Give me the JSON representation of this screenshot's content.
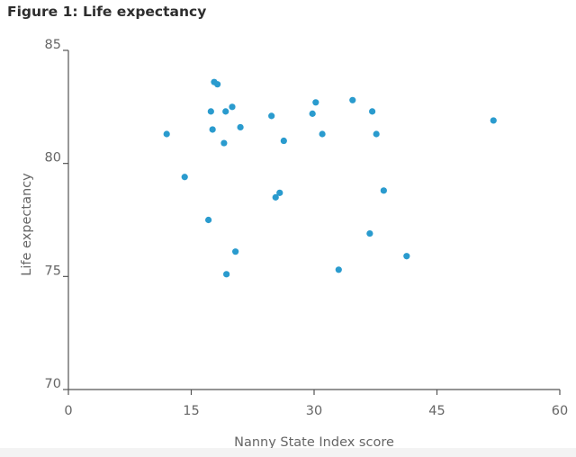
{
  "figure": {
    "title": "Figure 1: Life expectancy"
  },
  "chart_data": {
    "type": "scatter",
    "title": "Figure 1: Life expectancy",
    "xlabel": "Nanny State Index score",
    "ylabel": "Life expectancy",
    "xlim": [
      0,
      60
    ],
    "ylim": [
      70,
      85
    ],
    "xticks": [
      "0",
      "15",
      "30",
      "45",
      "60"
    ],
    "yticks": [
      "70",
      "75",
      "80",
      "85"
    ],
    "grid": false,
    "legend": "none",
    "marker_color": "#2a9bce",
    "axis_color": "#555555",
    "points": [
      {
        "x": 12.0,
        "y": 81.3
      },
      {
        "x": 14.2,
        "y": 79.4
      },
      {
        "x": 17.1,
        "y": 77.5
      },
      {
        "x": 17.4,
        "y": 82.3
      },
      {
        "x": 17.6,
        "y": 81.5
      },
      {
        "x": 17.8,
        "y": 83.6
      },
      {
        "x": 18.2,
        "y": 83.5
      },
      {
        "x": 19.0,
        "y": 80.9
      },
      {
        "x": 19.2,
        "y": 82.3
      },
      {
        "x": 19.3,
        "y": 75.1
      },
      {
        "x": 20.0,
        "y": 82.5
      },
      {
        "x": 20.4,
        "y": 76.1
      },
      {
        "x": 21.0,
        "y": 81.6
      },
      {
        "x": 24.8,
        "y": 82.1
      },
      {
        "x": 25.3,
        "y": 78.5
      },
      {
        "x": 25.8,
        "y": 78.7
      },
      {
        "x": 26.3,
        "y": 81.0
      },
      {
        "x": 29.8,
        "y": 82.2
      },
      {
        "x": 30.2,
        "y": 82.7
      },
      {
        "x": 31.0,
        "y": 81.3
      },
      {
        "x": 33.0,
        "y": 75.3
      },
      {
        "x": 34.7,
        "y": 82.8
      },
      {
        "x": 36.8,
        "y": 76.9
      },
      {
        "x": 37.1,
        "y": 82.3
      },
      {
        "x": 37.6,
        "y": 81.3
      },
      {
        "x": 38.5,
        "y": 78.8
      },
      {
        "x": 41.3,
        "y": 75.9
      },
      {
        "x": 51.9,
        "y": 81.9
      }
    ]
  }
}
